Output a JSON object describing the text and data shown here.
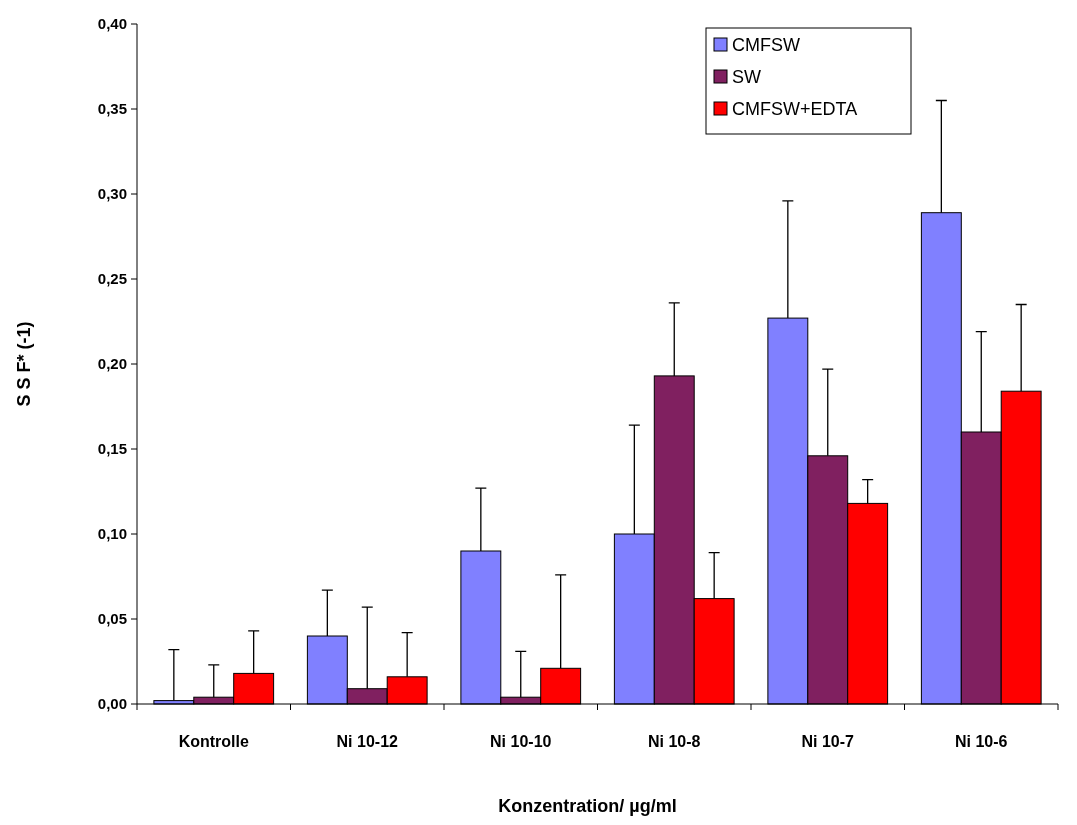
{
  "chart_data": {
    "type": "bar",
    "xlabel": "Konzentration/ µg/ml",
    "ylabel": "S S F* (-1)",
    "categories": [
      "Kontrolle",
      "Ni  10-12",
      "Ni 10-10",
      "Ni 10-8",
      "Ni 10-7",
      "Ni 10-6"
    ],
    "series": [
      {
        "name": "CMFSW",
        "color": "#8080ff",
        "values": [
          0.002,
          0.04,
          0.09,
          0.1,
          0.227,
          0.289
        ],
        "errors": [
          [
            0.002,
            0.032
          ],
          [
            0.04,
            0.067
          ],
          [
            0.09,
            0.127
          ],
          [
            0.1,
            0.164
          ],
          [
            0.227,
            0.296
          ],
          [
            0.289,
            0.355
          ]
        ]
      },
      {
        "name": "SW",
        "color": "#802060",
        "values": [
          0.004,
          0.009,
          0.004,
          0.193,
          0.146,
          0.16
        ],
        "errors": [
          [
            0.004,
            0.023
          ],
          [
            0.009,
            0.057
          ],
          [
            0.004,
            0.031
          ],
          [
            0.193,
            0.236
          ],
          [
            0.146,
            0.197
          ],
          [
            0.16,
            0.219
          ]
        ]
      },
      {
        "name": "CMFSW+EDTA",
        "color": "#ff0000",
        "values": [
          0.018,
          0.016,
          0.021,
          0.062,
          0.118,
          0.184
        ],
        "errors": [
          [
            0.018,
            0.043
          ],
          [
            0.016,
            0.042
          ],
          [
            0.021,
            0.076
          ],
          [
            0.062,
            0.089
          ],
          [
            0.118,
            0.132
          ],
          [
            0.184,
            0.235
          ]
        ]
      }
    ],
    "ylim": [
      0,
      0.4
    ],
    "yticks": [
      {
        "value": 0,
        "label": "0,00"
      },
      {
        "value": 0.05,
        "label": "0,05"
      },
      {
        "value": 0.1,
        "label": "0,10"
      },
      {
        "value": 0.15,
        "label": "0,15"
      },
      {
        "value": 0.2,
        "label": "0,20"
      },
      {
        "value": 0.25,
        "label": "0,25"
      },
      {
        "value": 0.3,
        "label": "0,30"
      },
      {
        "value": 0.35,
        "label": "0,35"
      },
      {
        "value": 0.4,
        "label": "0,40"
      }
    ],
    "legend": "top right",
    "grid": false
  }
}
